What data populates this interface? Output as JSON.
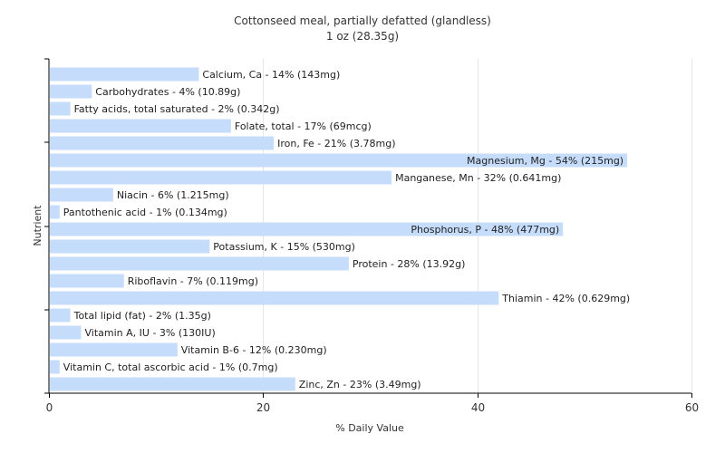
{
  "chart_data": {
    "type": "bar",
    "orientation": "horizontal",
    "title": "Cottonseed meal, partially defatted (glandless)",
    "subtitle": "1 oz (28.35g)",
    "xlabel": "% Daily Value",
    "ylabel": "Nutrient",
    "xlim": [
      0,
      60
    ],
    "xticks": [
      0,
      20,
      40,
      60
    ],
    "grid": true,
    "bar_color": "#c6dcfb",
    "categories": [
      "Calcium, Ca",
      "Carbohydrates",
      "Fatty acids, total saturated",
      "Folate, total",
      "Iron, Fe",
      "Magnesium, Mg",
      "Manganese, Mn",
      "Niacin",
      "Pantothenic acid",
      "Phosphorus, P",
      "Potassium, K",
      "Protein",
      "Riboflavin",
      "Thiamin",
      "Total lipid (fat)",
      "Vitamin A, IU",
      "Vitamin B-6",
      "Vitamin C, total ascorbic acid",
      "Zinc, Zn"
    ],
    "values": [
      14,
      4,
      2,
      17,
      21,
      54,
      32,
      6,
      1,
      48,
      15,
      28,
      7,
      42,
      2,
      3,
      12,
      1,
      23
    ],
    "labels": [
      "Calcium, Ca - 14% (143mg)",
      "Carbohydrates - 4% (10.89g)",
      "Fatty acids, total saturated - 2% (0.342g)",
      "Folate, total - 17% (69mcg)",
      "Iron, Fe - 21% (3.78mg)",
      "Magnesium, Mg - 54% (215mg)",
      "Manganese, Mn - 32% (0.641mg)",
      "Niacin - 6% (1.215mg)",
      "Pantothenic acid - 1% (0.134mg)",
      "Phosphorus, P - 48% (477mg)",
      "Potassium, K - 15% (530mg)",
      "Protein - 28% (13.92g)",
      "Riboflavin - 7% (0.119mg)",
      "Thiamin - 42% (0.629mg)",
      "Total lipid (fat) - 2% (1.35g)",
      "Vitamin A, IU - 3% (130IU)",
      "Vitamin B-6 - 12% (0.230mg)",
      "Vitamin C, total ascorbic acid - 1% (0.7mg)",
      "Zinc, Zn - 23% (3.49mg)"
    ],
    "inside_label_indices": [
      5,
      9
    ]
  }
}
